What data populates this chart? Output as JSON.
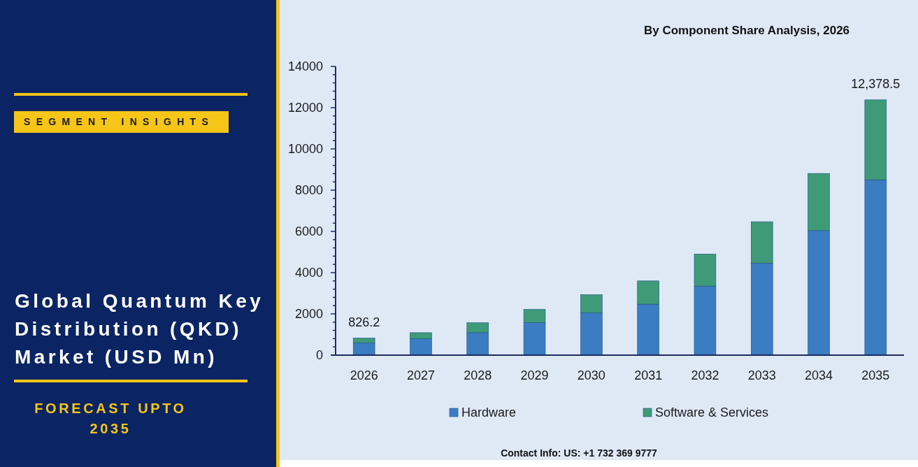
{
  "chart_data": {
    "type": "bar",
    "title": "Global Quantum Key Distribution (QKD) Market (USD Mn)",
    "subtitle": "By Component Share Analysis, 2026",
    "annotations": [
      "SEGMENT INSIGHTS",
      "FORECAST UPTO 2035",
      "Contact Info: US: +1 732 369 9777"
    ],
    "categories": [
      "2026",
      "2027",
      "2028",
      "2029",
      "2030",
      "2031",
      "2032",
      "2033",
      "2034",
      "2035"
    ],
    "series": [
      {
        "name": "Hardware",
        "color": "#3a7dc2",
        "values": [
          590,
          790,
          1090,
          1570,
          2050,
          2470,
          3350,
          4460,
          6040,
          8500
        ]
      },
      {
        "name": "Software & Services",
        "color": "#3f9a78",
        "values": [
          236.2,
          300,
          480,
          650,
          880,
          1130,
          1550,
          2010,
          2770,
          3878.5
        ]
      }
    ],
    "stacked": true,
    "totals": [
      "826.2",
      null,
      null,
      null,
      null,
      null,
      null,
      null,
      null,
      "12,378.5"
    ],
    "ylim": [
      0,
      14000
    ],
    "yticks": [
      0,
      {
        "value": 400,
        "label": null
      },
      {
        "value": 800,
        "label": null
      },
      {
        "value": 1200,
        "label": null
      },
      {
        "value": 1600,
        "label": null
      },
      2000,
      {
        "value": 2400,
        "label": null
      },
      {
        "value": 2800,
        "label": null
      },
      {
        "value": 3200,
        "label": null
      },
      {
        "value": 3600,
        "label": null
      },
      4000,
      {
        "value": 4400,
        "label": null
      },
      {
        "value": 4800,
        "label": null
      },
      {
        "value": 5200,
        "label": null
      },
      {
        "value": 5600,
        "label": null
      },
      6000,
      {
        "value": 6400,
        "label": null
      },
      {
        "value": 6800,
        "label": null
      },
      {
        "value": 7200,
        "label": null
      },
      {
        "value": 7600,
        "label": null
      },
      8000,
      {
        "value": 8400,
        "label": null
      },
      {
        "value": 8800,
        "label": null
      },
      {
        "value": 9200,
        "label": null
      },
      {
        "value": 9600,
        "label": null
      },
      10000,
      {
        "value": 10400,
        "label": null
      },
      {
        "value": 10800,
        "label": null
      },
      {
        "value": 11200,
        "label": null
      },
      {
        "value": 11600,
        "label": null
      },
      12000,
      {
        "value": 12400,
        "label": null
      },
      {
        "value": 12800,
        "label": null
      },
      {
        "value": 13200,
        "label": null
      },
      {
        "value": 13600,
        "label": null
      },
      14000
    ],
    "legend": "bottom"
  }
}
